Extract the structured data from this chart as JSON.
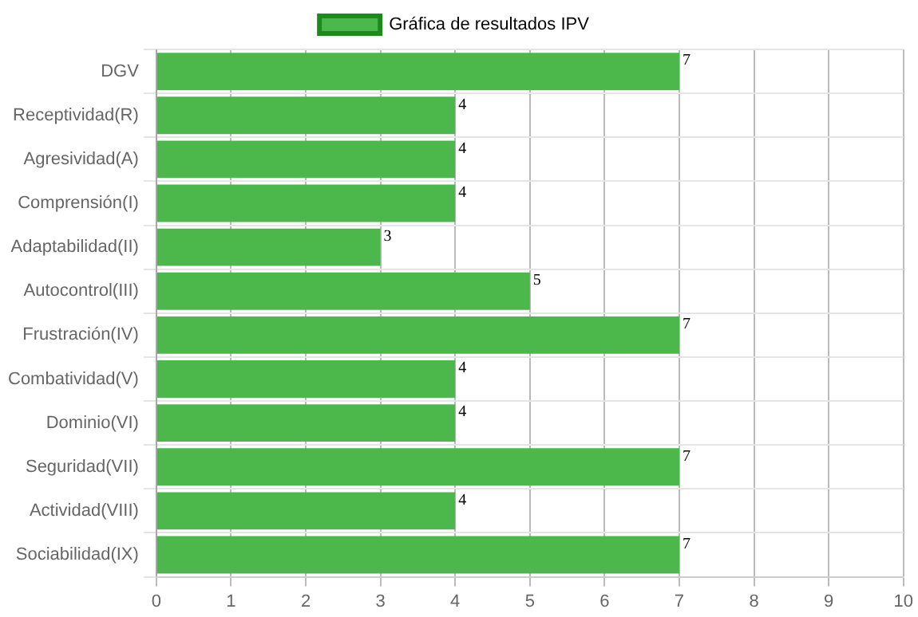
{
  "chart_data": {
    "type": "bar",
    "orientation": "horizontal",
    "categories": [
      "DGV",
      "Receptividad(R)",
      "Agresividad(A)",
      "Comprensión(I)",
      "Adaptabilidad(II)",
      "Autocontrol(III)",
      "Frustración(IV)",
      "Combatividad(V)",
      "Dominio(VI)",
      "Seguridad(VII)",
      "Actividad(VIII)",
      "Sociabilidad(IX)"
    ],
    "series": [
      {
        "name": "Gráfica de resultados IPV",
        "color": "#4cb84c",
        "values": [
          7,
          4,
          4,
          4,
          3,
          5,
          7,
          4,
          4,
          7,
          4,
          7
        ]
      }
    ],
    "xlim": [
      0,
      10
    ],
    "xticks": [
      0,
      1,
      2,
      3,
      4,
      5,
      6,
      7,
      8,
      9,
      10
    ],
    "grid": true,
    "legend": "top",
    "data_labels": true
  }
}
